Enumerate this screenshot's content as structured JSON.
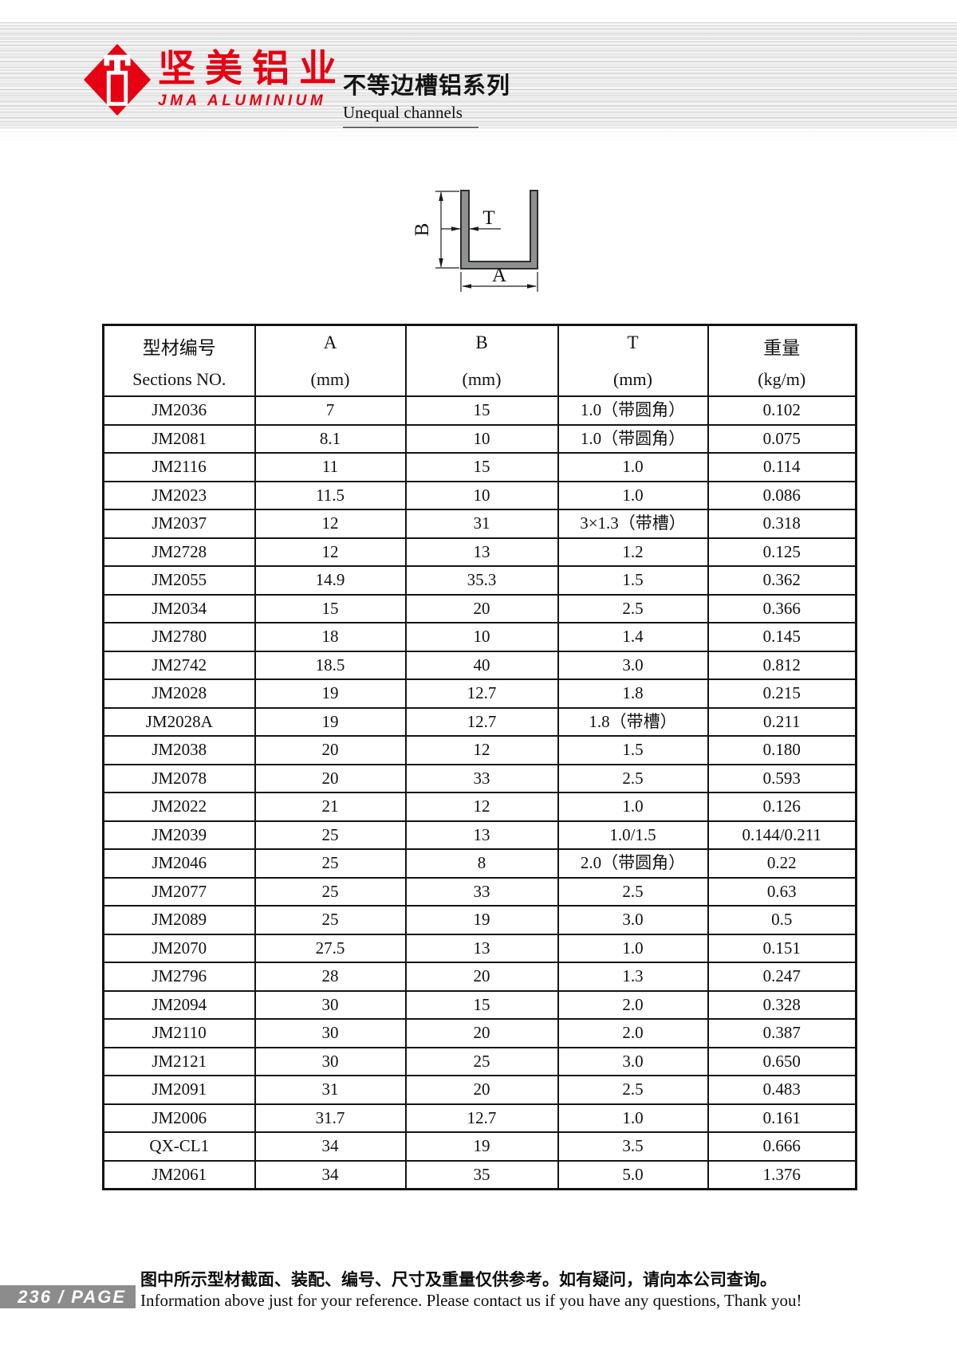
{
  "header": {
    "brand_cn": "坚美铝业",
    "brand_en": "JMA ALUMINIUM",
    "series_cn": "不等边槽铝系列",
    "series_en": "Unequal channels"
  },
  "colors": {
    "brand_red": "#e60012",
    "profile_fill": "#8e9092",
    "footer_bar": "#8c8c8c"
  },
  "diagram": {
    "labels": {
      "width": "A",
      "height": "B",
      "thickness": "T"
    }
  },
  "table": {
    "columns": [
      {
        "line1": "型材编号",
        "line2": "Sections NO."
      },
      {
        "line1": "A",
        "line2": "(mm)"
      },
      {
        "line1": "B",
        "line2": "(mm)"
      },
      {
        "line1": "T",
        "line2": "(mm)"
      },
      {
        "line1": "重量",
        "line2": "(kg/m)"
      }
    ],
    "rows": [
      [
        "JM2036",
        "7",
        "15",
        "1.0（带圆角）",
        "0.102"
      ],
      [
        "JM2081",
        "8.1",
        "10",
        "1.0（带圆角）",
        "0.075"
      ],
      [
        "JM2116",
        "11",
        "15",
        "1.0",
        "0.114"
      ],
      [
        "JM2023",
        "11.5",
        "10",
        "1.0",
        "0.086"
      ],
      [
        "JM2037",
        "12",
        "31",
        "3×1.3（带槽）",
        "0.318"
      ],
      [
        "JM2728",
        "12",
        "13",
        "1.2",
        "0.125"
      ],
      [
        "JM2055",
        "14.9",
        "35.3",
        "1.5",
        "0.362"
      ],
      [
        "JM2034",
        "15",
        "20",
        "2.5",
        "0.366"
      ],
      [
        "JM2780",
        "18",
        "10",
        "1.4",
        "0.145"
      ],
      [
        "JM2742",
        "18.5",
        "40",
        "3.0",
        "0.812"
      ],
      [
        "JM2028",
        "19",
        "12.7",
        "1.8",
        "0.215"
      ],
      [
        "JM2028A",
        "19",
        "12.7",
        "1.8（带槽）",
        "0.211"
      ],
      [
        "JM2038",
        "20",
        "12",
        "1.5",
        "0.180"
      ],
      [
        "JM2078",
        "20",
        "33",
        "2.5",
        "0.593"
      ],
      [
        "JM2022",
        "21",
        "12",
        "1.0",
        "0.126"
      ],
      [
        "JM2039",
        "25",
        "13",
        "1.0/1.5",
        "0.144/0.211"
      ],
      [
        "JM2046",
        "25",
        "8",
        "2.0（带圆角）",
        "0.22"
      ],
      [
        "JM2077",
        "25",
        "33",
        "2.5",
        "0.63"
      ],
      [
        "JM2089",
        "25",
        "19",
        "3.0",
        "0.5"
      ],
      [
        "JM2070",
        "27.5",
        "13",
        "1.0",
        "0.151"
      ],
      [
        "JM2796",
        "28",
        "20",
        "1.3",
        "0.247"
      ],
      [
        "JM2094",
        "30",
        "15",
        "2.0",
        "0.328"
      ],
      [
        "JM2110",
        "30",
        "20",
        "2.0",
        "0.387"
      ],
      [
        "JM2121",
        "30",
        "25",
        "3.0",
        "0.650"
      ],
      [
        "JM2091",
        "31",
        "20",
        "2.5",
        "0.483"
      ],
      [
        "JM2006",
        "31.7",
        "12.7",
        "1.0",
        "0.161"
      ],
      [
        "QX-CL1",
        "34",
        "19",
        "3.5",
        "0.666"
      ],
      [
        "JM2061",
        "34",
        "35",
        "5.0",
        "1.376"
      ]
    ]
  },
  "footer": {
    "page_label": "236 / PAGE",
    "note_cn": "图中所示型材截面、装配、编号、尺寸及重量仅供参考。如有疑问，请向本公司查询。",
    "note_en": "Information above just for your reference. Please contact us if you have any questions, Thank you!"
  }
}
